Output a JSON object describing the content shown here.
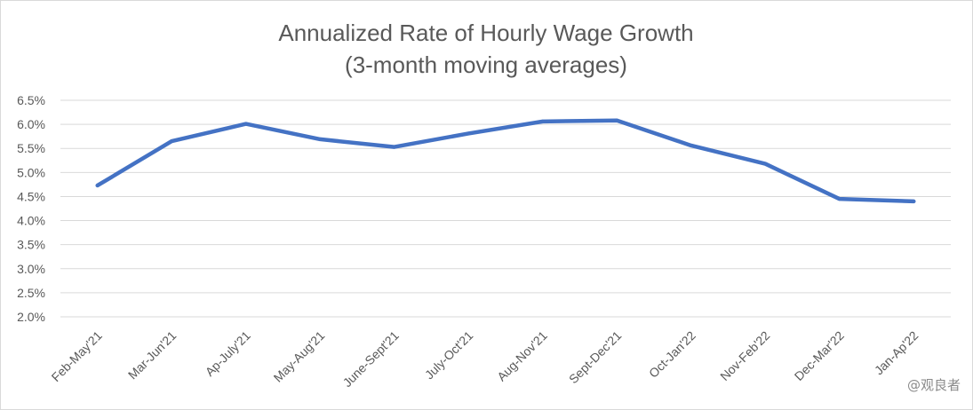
{
  "chart_data": {
    "type": "line",
    "title": [
      "Annualized Rate of Hourly Wage Growth",
      "(3-month moving averages)"
    ],
    "xlabel": "",
    "ylabel": "",
    "categories": [
      "Feb-May'21",
      "Mar-Jun'21",
      "Ap-July'21",
      "May-Aug'21",
      "June-Sept'21",
      "July-Oct'21",
      "Aug-Nov'21",
      "Sept-Dec'21",
      "Oct-Jan'22",
      "Nov-Feb'22",
      "Dec-Mar'22",
      "Jan-Ap'22"
    ],
    "series": [
      {
        "values": [
          4.73,
          5.65,
          6.01,
          5.69,
          5.53,
          5.81,
          6.06,
          6.08,
          5.56,
          5.18,
          4.45,
          4.4
        ],
        "color": "#4472c4"
      }
    ],
    "ylim": [
      2.0,
      6.5
    ],
    "yticks": [
      "2.0%",
      "2.5%",
      "3.0%",
      "3.5%",
      "4.0%",
      "4.5%",
      "5.0%",
      "5.5%",
      "6.0%",
      "6.5%"
    ],
    "grid": true,
    "legend": "none"
  },
  "watermark": "@观良者"
}
